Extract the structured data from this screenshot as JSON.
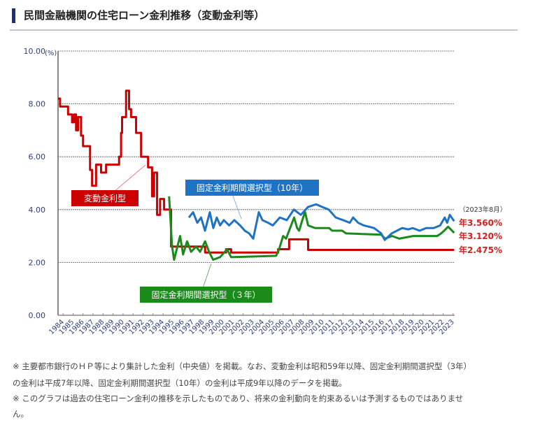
{
  "header": {
    "title": "民間金融機関の住宅ローン金利推移（変動金利等）"
  },
  "chart_data": {
    "type": "line",
    "title": "民間金融機関の住宅ローン金利推移（変動金利等）",
    "ylabel": "(%)",
    "ylim": [
      0,
      10
    ],
    "xlim": [
      1984,
      2023.6
    ],
    "yticks": [
      "0.00",
      "2.00",
      "4.00",
      "6.00",
      "8.00",
      "10.00"
    ],
    "xticks": [
      "1984",
      "1985",
      "1986",
      "1987",
      "1988",
      "1989",
      "1990",
      "1991",
      "1992",
      "1993",
      "1994",
      "1995",
      "1996",
      "1997",
      "1998",
      "1999",
      "2000",
      "2001",
      "2002",
      "2003",
      "2004",
      "2005",
      "2006",
      "2007",
      "2008",
      "2009",
      "2010",
      "2011",
      "2012",
      "2013",
      "2014",
      "2015",
      "2016",
      "2017",
      "2018",
      "2019",
      "2020",
      "2021",
      "2022",
      "2023"
    ],
    "grid": true,
    "as_of": "（2023年8月）",
    "series": [
      {
        "name": "変動金利型",
        "color": "#cc0000",
        "step": true,
        "end_label": "年2.475%",
        "points": [
          [
            1984,
            8.2
          ],
          [
            1984.2,
            7.9
          ],
          [
            1985,
            7.6
          ],
          [
            1985.4,
            7.3
          ],
          [
            1985.6,
            7.6
          ],
          [
            1985.8,
            7.0
          ],
          [
            1986,
            7.5
          ],
          [
            1986.3,
            6.8
          ],
          [
            1986.5,
            6.4
          ],
          [
            1987.2,
            5.5
          ],
          [
            1987.4,
            4.9
          ],
          [
            1987.8,
            5.7
          ],
          [
            1988.3,
            5.4
          ],
          [
            1988.8,
            5.7
          ],
          [
            1990.1,
            6.0
          ],
          [
            1990.3,
            6.9
          ],
          [
            1990.4,
            7.5
          ],
          [
            1990.8,
            8.5
          ],
          [
            1991.1,
            7.8
          ],
          [
            1991.3,
            7.5
          ],
          [
            1991.8,
            6.9
          ],
          [
            1992.3,
            6.0
          ],
          [
            1993,
            5.6
          ],
          [
            1993.4,
            4.5
          ],
          [
            1993.6,
            5.4
          ],
          [
            1993.9,
            3.8
          ],
          [
            1994.2,
            4.4
          ],
          [
            1994.6,
            4.0
          ],
          [
            1995.3,
            2.6
          ],
          [
            1998.7,
            2.375
          ],
          [
            2000.8,
            2.5
          ],
          [
            2001.3,
            2.375
          ],
          [
            2006,
            2.5
          ],
          [
            2007.1,
            2.875
          ],
          [
            2009,
            2.475
          ],
          [
            2023.6,
            2.475
          ]
        ]
      },
      {
        "name": "固定金利期間選択型（10年）",
        "color": "#1f72c4",
        "step": false,
        "end_label": "年3.560%",
        "points": [
          [
            1997.08,
            3.7
          ],
          [
            1997.5,
            3.9
          ],
          [
            1997.92,
            3.5
          ],
          [
            1998.3,
            3.7
          ],
          [
            1998.69,
            3.2
          ],
          [
            1999.17,
            3.9
          ],
          [
            1999.52,
            3.3
          ],
          [
            1999.87,
            3.7
          ],
          [
            2000.2,
            3.4
          ],
          [
            2000.57,
            3.6
          ],
          [
            2001.1,
            3.4
          ],
          [
            2001.62,
            3.6
          ],
          [
            2002.2,
            3.4
          ],
          [
            2002.67,
            3.2
          ],
          [
            2003.1,
            3.1
          ],
          [
            2003.51,
            2.9
          ],
          [
            2004.07,
            3.9
          ],
          [
            2004.43,
            3.6
          ],
          [
            2005,
            3.5
          ],
          [
            2005.47,
            3.4
          ],
          [
            2006.17,
            3.7
          ],
          [
            2006.87,
            3.6
          ],
          [
            2007.57,
            4.0
          ],
          [
            2008.27,
            3.8
          ],
          [
            2009,
            4.1
          ],
          [
            2009.8,
            4.2
          ],
          [
            2010.4,
            4.1
          ],
          [
            2011.06,
            4.0
          ],
          [
            2011.76,
            3.7
          ],
          [
            2012.5,
            3.6
          ],
          [
            2013.16,
            3.5
          ],
          [
            2013.5,
            3.7
          ],
          [
            2014,
            3.5
          ],
          [
            2014.56,
            3.4
          ],
          [
            2015.6,
            3.3
          ],
          [
            2016.3,
            3.1
          ],
          [
            2016.66,
            2.85
          ],
          [
            2017.36,
            3.1
          ],
          [
            2018.4,
            3.3
          ],
          [
            2019,
            3.25
          ],
          [
            2019.45,
            3.3
          ],
          [
            2020.15,
            3.2
          ],
          [
            2020.8,
            3.3
          ],
          [
            2021.55,
            3.3
          ],
          [
            2022.2,
            3.4
          ],
          [
            2022.66,
            3.7
          ],
          [
            2022.9,
            3.5
          ],
          [
            2023.16,
            3.8
          ],
          [
            2023.6,
            3.56
          ]
        ]
      },
      {
        "name": "固定金利期間選択型（３年）",
        "color": "#1a8a1a",
        "step": false,
        "end_label": "年3.120%",
        "points": [
          [
            1995.1,
            4.5
          ],
          [
            1995.4,
            2.6
          ],
          [
            1995.6,
            2.1
          ],
          [
            1996.2,
            3.0
          ],
          [
            1996.5,
            2.3
          ],
          [
            1996.9,
            2.8
          ],
          [
            1997.3,
            2.4
          ],
          [
            1997.8,
            2.6
          ],
          [
            1998.2,
            2.4
          ],
          [
            1998.7,
            2.8
          ],
          [
            1999.1,
            2.4
          ],
          [
            1999.5,
            2.1
          ],
          [
            2000.2,
            2.2
          ],
          [
            2000.9,
            2.5
          ],
          [
            2001.3,
            2.2
          ],
          [
            2005.8,
            2.25
          ],
          [
            2006.1,
            2.5
          ],
          [
            2006.5,
            3.0
          ],
          [
            2006.8,
            2.9
          ],
          [
            2007.4,
            3.5
          ],
          [
            2007.6,
            3.7
          ],
          [
            2007.9,
            3.3
          ],
          [
            2008.1,
            3.2
          ],
          [
            2008.5,
            3.7
          ],
          [
            2008.7,
            3.9
          ],
          [
            2009,
            3.4
          ],
          [
            2009.7,
            3.3
          ],
          [
            2011.1,
            3.3
          ],
          [
            2011.4,
            3.2
          ],
          [
            2012.4,
            3.2
          ],
          [
            2012.8,
            3.1
          ],
          [
            2016.3,
            3.05
          ],
          [
            2016.7,
            2.9
          ],
          [
            2017.4,
            3.0
          ],
          [
            2018.1,
            2.9
          ],
          [
            2019.5,
            3.0
          ],
          [
            2021.9,
            3.0
          ],
          [
            2022.3,
            3.1
          ],
          [
            2022.6,
            3.2
          ],
          [
            2023,
            3.35
          ],
          [
            2023.6,
            3.12
          ]
        ]
      }
    ]
  },
  "notes": [
    "※ 主要都市銀行のＨＰ等により集計した金利（中央値）を掲載。なお、変動金利は昭和59年以降、固定金利期間選択型（3年）",
    "の金利は平成7年以降、固定金利期間選択型（10年）の金利は平成9年以降のデータを掲載。",
    "※ このグラフは過去の住宅ローン金利の推移を示したものであり、将来の金利動向を約束あるいは予測するものではありませ",
    "ん。"
  ]
}
